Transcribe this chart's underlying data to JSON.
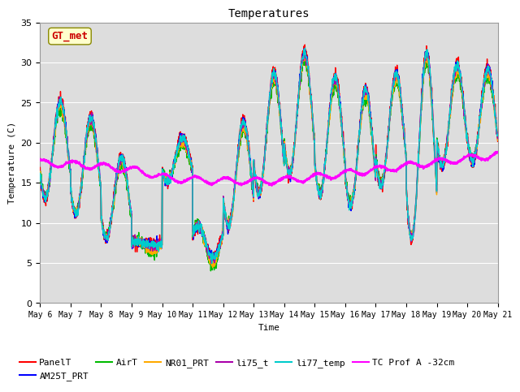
{
  "title": "Temperatures",
  "xlabel": "Time",
  "ylabel": "Temperature (C)",
  "ylim": [
    0,
    35
  ],
  "yticks": [
    0,
    5,
    10,
    15,
    20,
    25,
    30,
    35
  ],
  "x_tick_labels": [
    "May 6",
    "May 7",
    "May 8",
    "May 9",
    "May 10",
    "May 11",
    "May 12",
    "May 13",
    "May 14",
    "May 15",
    "May 16",
    "May 17",
    "May 18",
    "May 19",
    "May 20",
    "May 21"
  ],
  "series_colors": {
    "PanelT": "#ff0000",
    "AM25T_PRT": "#0000ff",
    "AirT": "#00bb00",
    "NR01_PRT": "#ffaa00",
    "li75_t": "#aa00aa",
    "li77_temp": "#00cccc",
    "TC Prof A -32cm": "#ff00ff"
  },
  "legend_annotation": "GT_met",
  "legend_annotation_color": "#cc0000",
  "legend_annotation_bg": "#ffffcc",
  "plot_bg_color": "#dddddd",
  "grid_color": "#ffffff",
  "n_days": 15,
  "pts_per_day": 144,
  "daily_peaks": [
    25.5,
    23.5,
    18.5,
    7.5,
    21.0,
    6.0,
    23.0,
    29.0,
    31.5,
    28.5,
    27.0,
    29.0,
    31.5,
    30.0,
    29.5
  ],
  "daily_troughs": [
    13.0,
    11.0,
    8.0,
    7.5,
    15.0,
    9.5,
    9.5,
    13.5,
    16.0,
    13.5,
    12.0,
    14.5,
    8.0,
    17.0,
    17.5
  ],
  "tc_prof_values": [
    17.5,
    17.3,
    17.0,
    16.5,
    15.5,
    15.3,
    15.2,
    15.2,
    15.5,
    16.0,
    16.5,
    17.0,
    17.5,
    18.0,
    18.5
  ],
  "legend_items_row1": [
    "PanelT",
    "AM25T_PRT",
    "AirT",
    "NR01_PRT",
    "li75_t",
    "li77_temp"
  ],
  "legend_items_row2": [
    "TC Prof A -32cm"
  ]
}
